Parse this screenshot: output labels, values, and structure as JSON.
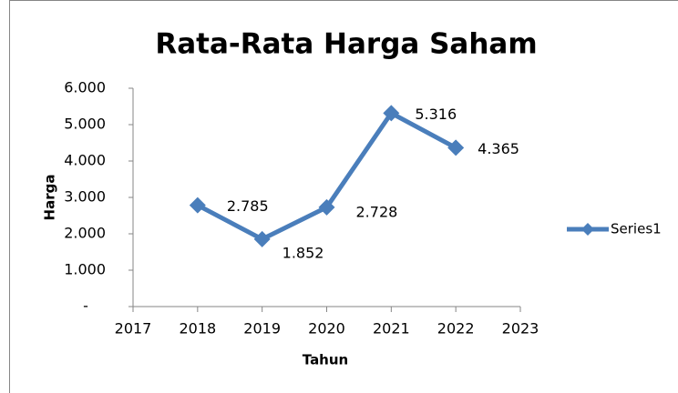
{
  "chart_data": {
    "type": "line",
    "title": "Rata-Rata Harga Saham",
    "x_label": "Tahun",
    "y_label": "Harga",
    "x": [
      2018,
      2019,
      2020,
      2021,
      2022
    ],
    "series": [
      {
        "name": "Series1",
        "color": "#4a7ebb",
        "values": [
          2785,
          1852,
          2728,
          5316,
          4365
        ],
        "value_labels": [
          "2.785",
          "1.852",
          "2.728",
          "5.316",
          "4.365"
        ]
      }
    ],
    "xlim": [
      2017,
      2023
    ],
    "xticks": [
      2017,
      2018,
      2019,
      2020,
      2021,
      2022,
      2023
    ],
    "ylim": [
      0,
      6000
    ],
    "yticks": [
      {
        "value": 0,
        "label": "-"
      },
      {
        "value": 1000,
        "label": "1.000"
      },
      {
        "value": 2000,
        "label": "2.000"
      },
      {
        "value": 3000,
        "label": "3.000"
      },
      {
        "value": 4000,
        "label": "4.000"
      },
      {
        "value": 5000,
        "label": "5.000"
      },
      {
        "value": 6000,
        "label": "6.000"
      }
    ],
    "grid": false,
    "legend": "right"
  }
}
